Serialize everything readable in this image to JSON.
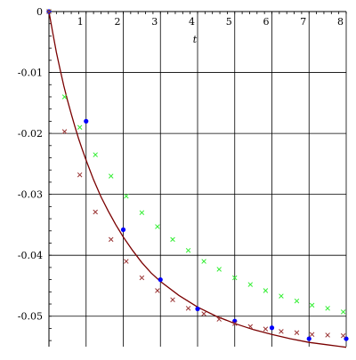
{
  "chart_data": {
    "type": "scatter",
    "title": "",
    "xlabel": "t",
    "ylabel": "",
    "xlim": [
      0,
      8
    ],
    "ylim": [
      -0.055,
      0
    ],
    "grid": true,
    "x_ticks": [
      1,
      2,
      3,
      4,
      5,
      6,
      7,
      8
    ],
    "x_tick_labels": [
      "1",
      "2",
      "3",
      "4",
      "5",
      "6",
      "7",
      "8"
    ],
    "y_ticks": [
      0,
      -0.01,
      -0.02,
      -0.03,
      -0.04,
      -0.05
    ],
    "y_tick_labels": [
      "0",
      "-0.01",
      "-0.02",
      "-0.03",
      "-0.04",
      "-0.05"
    ],
    "series": [
      {
        "kind": "line",
        "color": "#7a0000",
        "x": [
          0,
          0.1,
          0.2,
          0.3,
          0.4,
          0.5,
          0.6,
          0.7,
          0.8,
          0.9,
          1.0,
          1.2,
          1.4,
          1.6,
          1.8,
          2.0,
          2.25,
          2.5,
          2.75,
          3.0,
          3.5,
          4.0,
          4.5,
          5.0,
          5.5,
          6.0,
          6.5,
          7.0,
          7.5,
          8.0
        ],
        "y": [
          0,
          -0.0034,
          -0.0067,
          -0.0095,
          -0.0122,
          -0.0146,
          -0.0168,
          -0.0189,
          -0.0209,
          -0.0227,
          -0.0244,
          -0.0276,
          -0.0304,
          -0.0328,
          -0.035,
          -0.037,
          -0.0392,
          -0.0412,
          -0.0429,
          -0.0443,
          -0.0466,
          -0.0485,
          -0.05,
          -0.0512,
          -0.0522,
          -0.053,
          -0.0537,
          -0.0543,
          -0.0547,
          -0.0551
        ]
      },
      {
        "kind": "dot",
        "color": "#0000ff",
        "x": [
          0,
          1,
          2,
          3,
          4,
          5,
          6,
          7,
          8
        ],
        "y": [
          0,
          -0.018,
          -0.0358,
          -0.044,
          -0.0488,
          -0.0508,
          -0.0519,
          -0.0537,
          -0.0537
        ]
      },
      {
        "kind": "cross",
        "color": "#33ee33",
        "x": [
          0,
          0.42,
          0.83,
          1.25,
          1.67,
          2.08,
          2.5,
          2.92,
          3.33,
          3.75,
          4.17,
          4.58,
          5.0,
          5.42,
          5.83,
          6.25,
          6.67,
          7.08,
          7.5,
          7.92
        ],
        "y": [
          0,
          -0.014,
          -0.019,
          -0.0235,
          -0.027,
          -0.0303,
          -0.033,
          -0.0353,
          -0.0374,
          -0.0392,
          -0.041,
          -0.0423,
          -0.0437,
          -0.0448,
          -0.0458,
          -0.0467,
          -0.0475,
          -0.0482,
          -0.0487,
          -0.0493
        ]
      },
      {
        "kind": "cross",
        "color": "#993333",
        "x": [
          0,
          0.42,
          0.83,
          1.25,
          1.67,
          2.08,
          2.5,
          2.92,
          3.33,
          3.75,
          4.17,
          4.58,
          5.0,
          5.42,
          5.83,
          6.25,
          6.67,
          7.08,
          7.5,
          7.92
        ],
        "y": [
          0,
          -0.0197,
          -0.0268,
          -0.0329,
          -0.0374,
          -0.041,
          -0.0437,
          -0.0458,
          -0.0473,
          -0.0487,
          -0.0496,
          -0.0505,
          -0.0512,
          -0.0517,
          -0.0521,
          -0.0525,
          -0.0527,
          -0.053,
          -0.0531,
          -0.0532
        ]
      }
    ]
  }
}
